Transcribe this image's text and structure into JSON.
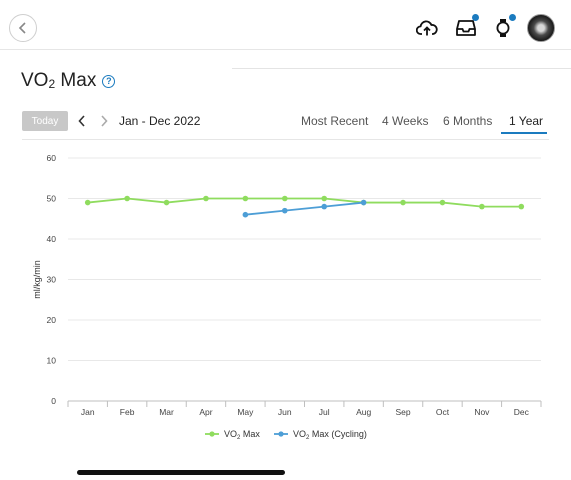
{
  "header": {
    "back_icon": "chevron-left-icon",
    "icons": [
      {
        "name": "cloud-upload-icon"
      },
      {
        "name": "inbox-icon",
        "badge_color": "#1b7bbf"
      },
      {
        "name": "watch-icon",
        "badge_color": "#1b7bbf"
      }
    ],
    "avatar": "avatar"
  },
  "page": {
    "title_main": "VO",
    "title_sub": "2",
    "title_rest": " Max",
    "help_label": "?"
  },
  "controls": {
    "today_label": "Today",
    "date_range": "Jan - Dec 2022",
    "tabs": [
      {
        "label": "Most Recent",
        "active": false
      },
      {
        "label": "4 Weeks",
        "active": false
      },
      {
        "label": "6 Months",
        "active": false
      },
      {
        "label": "1 Year",
        "active": true
      }
    ],
    "accent_color": "#1b7bbf"
  },
  "chart_data": {
    "type": "line",
    "categories": [
      "Jan",
      "Feb",
      "Mar",
      "Apr",
      "May",
      "Jun",
      "Jul",
      "Aug",
      "Sep",
      "Oct",
      "Nov",
      "Dec"
    ],
    "ylabel": "ml/kg/min",
    "ylim": [
      0,
      60
    ],
    "yticks": [
      0,
      10,
      20,
      30,
      40,
      50,
      60
    ],
    "grid": true,
    "legend_position": "bottom",
    "series": [
      {
        "name": "VO2 Max",
        "legend_main": "VO",
        "legend_sub": "2",
        "legend_rest": " Max",
        "color": "#8fdc5e",
        "values": [
          49,
          50,
          49,
          50,
          50,
          50,
          50,
          49,
          49,
          49,
          48,
          48
        ]
      },
      {
        "name": "VO2 Max (Cycling)",
        "legend_main": "VO",
        "legend_sub": "2",
        "legend_rest": " Max (Cycling)",
        "color": "#4d9ed6",
        "values": [
          null,
          null,
          null,
          null,
          46,
          47,
          48,
          49,
          null,
          null,
          null,
          null
        ]
      }
    ]
  }
}
